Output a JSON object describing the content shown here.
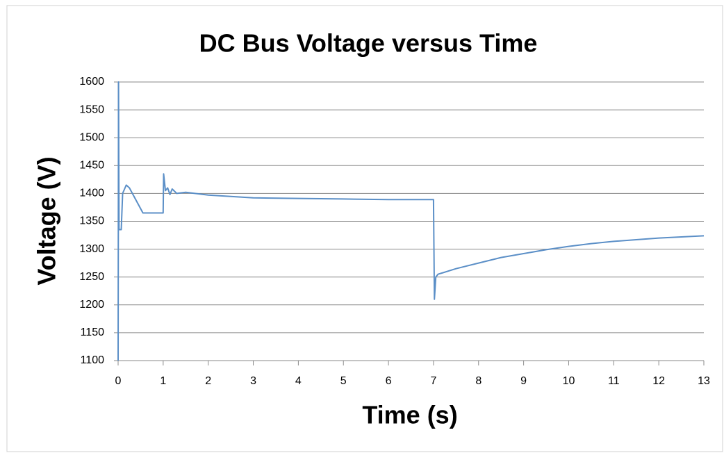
{
  "chart_data": {
    "type": "line",
    "title": "DC Bus Voltage versus Time",
    "x_label": "Time (s)",
    "y_label": "Voltage (V)",
    "xlim": [
      0,
      13
    ],
    "xticks": [
      0,
      1,
      2,
      3,
      4,
      5,
      6,
      7,
      8,
      9,
      10,
      11,
      12,
      13
    ],
    "ylim": [
      1100,
      1600
    ],
    "yticks": [
      1100,
      1150,
      1200,
      1250,
      1300,
      1350,
      1400,
      1450,
      1500,
      1550,
      1600
    ],
    "grid": true,
    "series": [
      {
        "name": "DC Bus Voltage",
        "color": "#5b8fc7",
        "x": [
          0,
          0.01,
          0.02,
          0.07,
          0.1,
          0.18,
          0.25,
          0.55,
          1.0,
          1.01,
          1.05,
          1.1,
          1.15,
          1.2,
          1.3,
          1.5,
          2,
          3,
          4,
          5,
          6,
          7.0,
          7.02,
          7.05,
          7.1,
          7.5,
          8,
          8.5,
          9,
          9.5,
          10,
          10.5,
          11,
          11.5,
          12,
          12.5,
          13
        ],
        "values": [
          1100,
          1600,
          1335,
          1335,
          1400,
          1415,
          1410,
          1365,
          1365,
          1435,
          1405,
          1410,
          1398,
          1408,
          1400,
          1402,
          1397,
          1392,
          1391,
          1390,
          1389,
          1389,
          1210,
          1250,
          1255,
          1265,
          1275,
          1285,
          1292,
          1299,
          1305,
          1310,
          1314,
          1317,
          1320,
          1322,
          1324
        ]
      }
    ]
  }
}
